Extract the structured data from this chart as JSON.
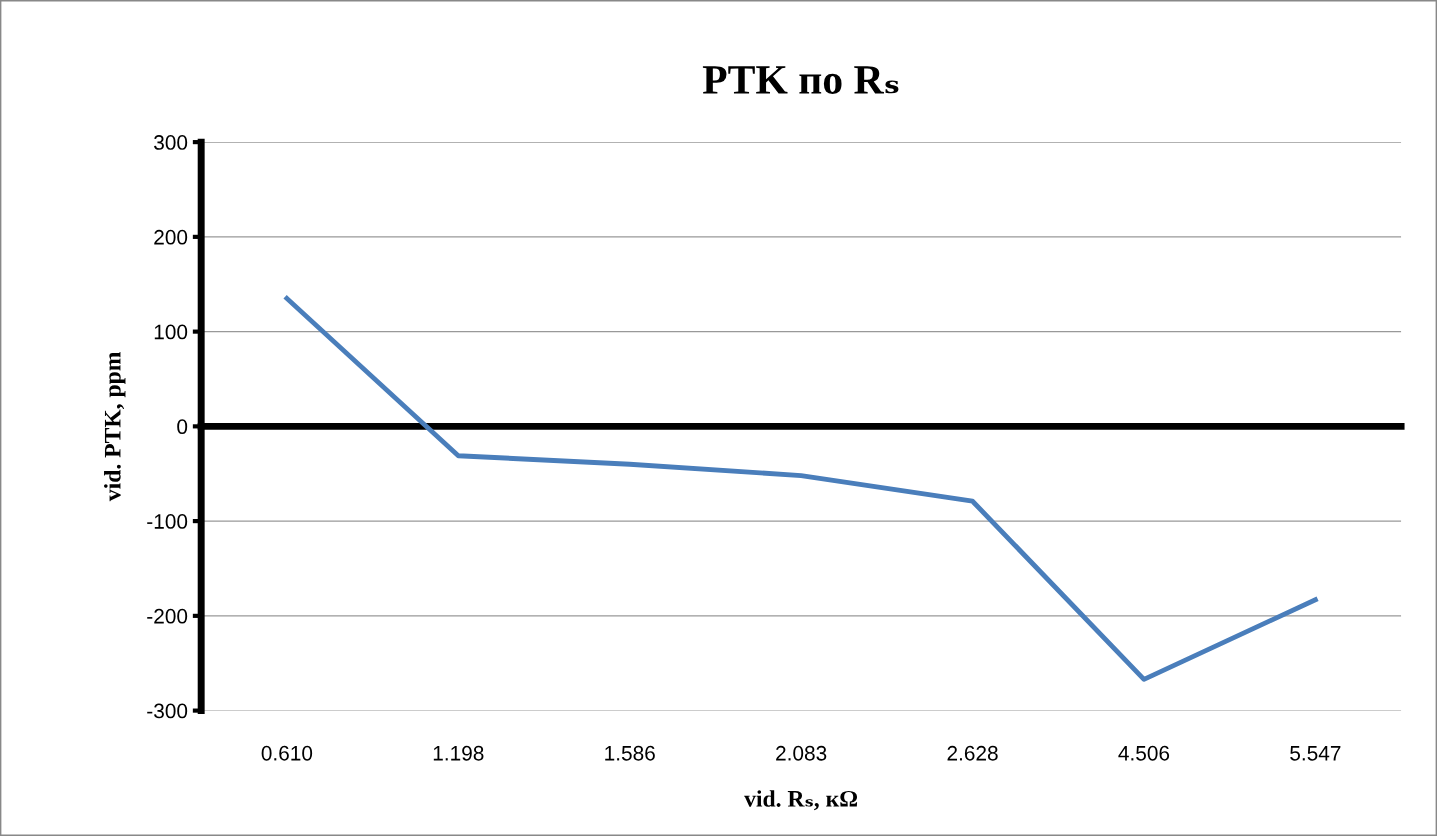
{
  "chart_data": {
    "type": "line",
    "title": "PTK по Rₛ",
    "xlabel": "vid. Rₛ, кΩ",
    "ylabel": "vid. PTK, ppm",
    "categories": [
      "0.610",
      "1.198",
      "1.586",
      "2.083",
      "2.628",
      "4.506",
      "5.547"
    ],
    "series": [
      {
        "color": "#4a7ebb",
        "values": [
          135,
          -31,
          -40,
          -52,
          -79,
          -267,
          -183
        ]
      }
    ],
    "ylim": [
      -300,
      300
    ],
    "yticks": [
      -300,
      -200,
      -100,
      0,
      100,
      200,
      300
    ],
    "grid": "y",
    "legend": false,
    "marker": "none",
    "line_style": "solid"
  }
}
